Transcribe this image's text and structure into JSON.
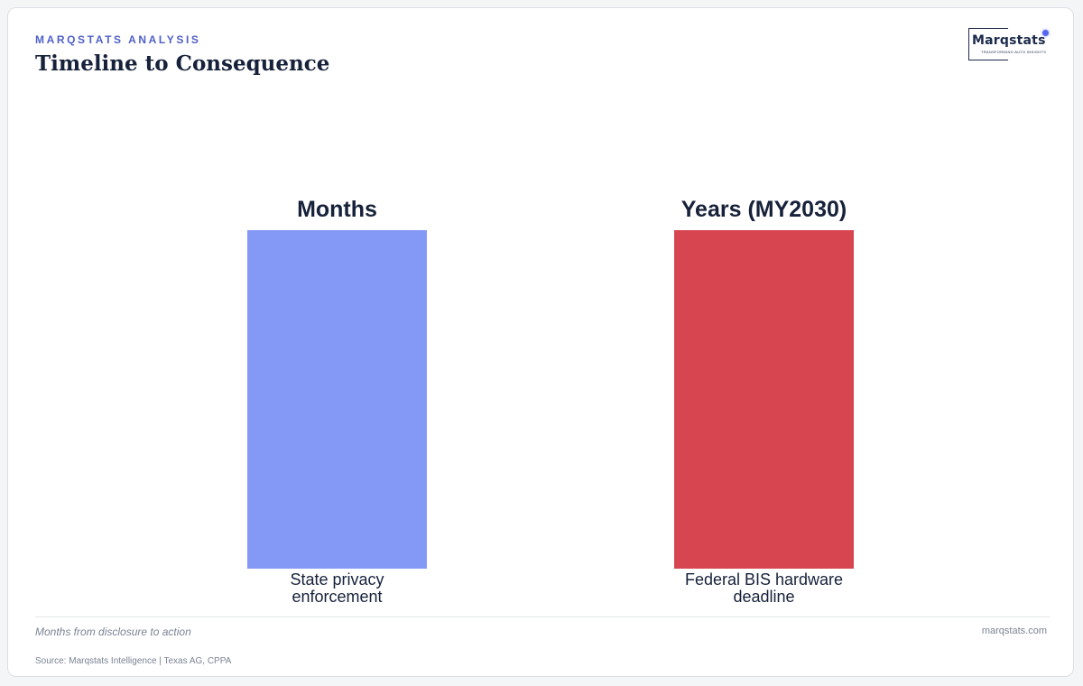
{
  "header": {
    "eyebrow": "MARQSTATS ANALYSIS",
    "title": "Timeline to Consequence"
  },
  "logo": {
    "wordmark": "Marqstats",
    "tagline": "TRANSFORMING AUTO INSIGHTS",
    "accent_color": "#5566ee"
  },
  "chart_data": {
    "type": "bar",
    "categories": [
      "State privacy enforcement",
      "Federal BIS hardware deadline"
    ],
    "category_lines": [
      [
        "State privacy",
        "enforcement"
      ],
      [
        "Federal BIS hardware",
        "deadline"
      ]
    ],
    "values": [
      1,
      1
    ],
    "data_labels": [
      "Months",
      "Years (MY2030)"
    ],
    "colors": [
      "#8499f5",
      "#d64550"
    ],
    "title": "",
    "xlabel": "",
    "ylabel": "",
    "grid": false,
    "legend": "none"
  },
  "footer": {
    "note": "Months from disclosure to action",
    "site": "marqstats.com",
    "source": "Source: Marqstats Intelligence | Texas AG, CPPA"
  }
}
